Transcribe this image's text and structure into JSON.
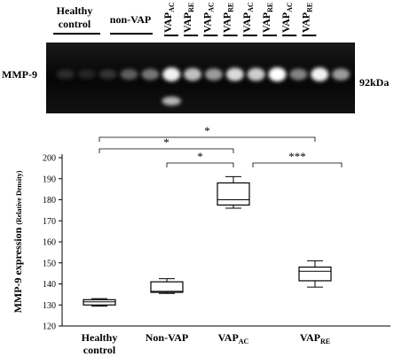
{
  "gel": {
    "top_labels": [
      {
        "text": "Healthy\ncontrol"
      },
      {
        "text": "non-VAP"
      },
      {
        "text": "VAP",
        "sub": "AC"
      },
      {
        "text": "VAP",
        "sub": "RE"
      },
      {
        "text": "VAP",
        "sub": "AC"
      },
      {
        "text": "VAP",
        "sub": "RE"
      },
      {
        "text": "VAP",
        "sub": "AC"
      },
      {
        "text": "VAP",
        "sub": "RE"
      },
      {
        "text": "VAP",
        "sub": "AC"
      },
      {
        "text": "VAP",
        "sub": "RE"
      }
    ],
    "row_label": "MMP-9",
    "size_label": "92kDa",
    "band_intensity": [
      0.15,
      0.12,
      0.18,
      0.35,
      0.45,
      0.95,
      0.75,
      0.6,
      0.85,
      0.8,
      1.0,
      0.5,
      0.95,
      0.6
    ]
  },
  "chart_data": {
    "type": "box",
    "ylabel": "MMP-9 expression",
    "ylabel_small": "(Relative Density)",
    "ylim": [
      120,
      200
    ],
    "yticks": [
      120,
      130,
      140,
      150,
      160,
      170,
      180,
      190,
      200
    ],
    "categories": [
      {
        "text": "Healthy",
        "text2": "control"
      },
      {
        "text": "Non-VAP"
      },
      {
        "text": "VAP",
        "sub": "AC"
      },
      {
        "text": "VAP",
        "sub": "RE"
      }
    ],
    "boxes": [
      {
        "min": 129.5,
        "q1": 130.0,
        "median": 131.5,
        "q3": 132.5,
        "max": 133.0
      },
      {
        "min": 135.5,
        "q1": 136.0,
        "median": 136.5,
        "q3": 141.0,
        "max": 142.5
      },
      {
        "min": 176.0,
        "q1": 177.5,
        "median": 180.0,
        "q3": 188.0,
        "max": 191.0
      },
      {
        "min": 138.5,
        "q1": 141.5,
        "median": 146.0,
        "q3": 148.0,
        "max": 151.0
      }
    ],
    "significance": [
      {
        "from": 0,
        "to": 3,
        "label": "*"
      },
      {
        "from": 0,
        "to": 2,
        "label": "*"
      },
      {
        "from": 1,
        "to": 2,
        "label": "*"
      },
      {
        "from": 2,
        "to": 3,
        "label": "***"
      }
    ]
  }
}
